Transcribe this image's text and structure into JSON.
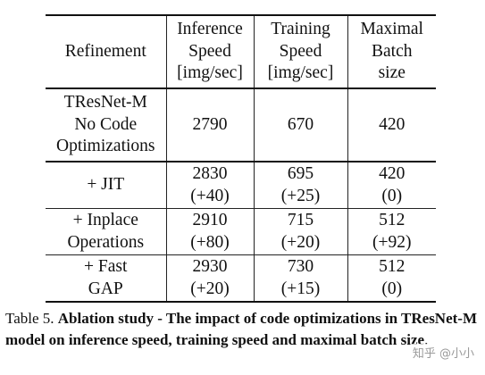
{
  "table": {
    "headers": [
      [
        "Refinement"
      ],
      [
        "Inference",
        "Speed",
        "[img/sec]"
      ],
      [
        "Training",
        "Speed",
        "[img/sec]"
      ],
      [
        "Maximal",
        "Batch",
        "size"
      ]
    ],
    "baseline": {
      "label": [
        "TResNet-M",
        "No Code",
        "Optimizations"
      ],
      "inference": "2790",
      "training": "670",
      "batch": "420"
    },
    "rows": [
      {
        "label": [
          "+ JIT"
        ],
        "inference": [
          "2830",
          "(+40)"
        ],
        "training": [
          "695",
          "(+25)"
        ],
        "batch": [
          "420",
          "(0)"
        ]
      },
      {
        "label": [
          "+ Inplace",
          "Operations"
        ],
        "inference": [
          "2910",
          "(+80)"
        ],
        "training": [
          "715",
          "(+20)"
        ],
        "batch": [
          "512",
          "(+92)"
        ]
      },
      {
        "label": [
          "+ Fast",
          "GAP"
        ],
        "inference": [
          "2930",
          "(+20)"
        ],
        "training": [
          "730",
          "(+15)"
        ],
        "batch": [
          "512",
          "(0)"
        ]
      }
    ]
  },
  "caption": {
    "prefix": "Table 5. ",
    "bold": "Ablation study - The impact of code optimizations in TResNet-M model on inference speed, training speed and maximal batch size",
    "suffix": "."
  },
  "watermark": "知乎 @小小"
}
